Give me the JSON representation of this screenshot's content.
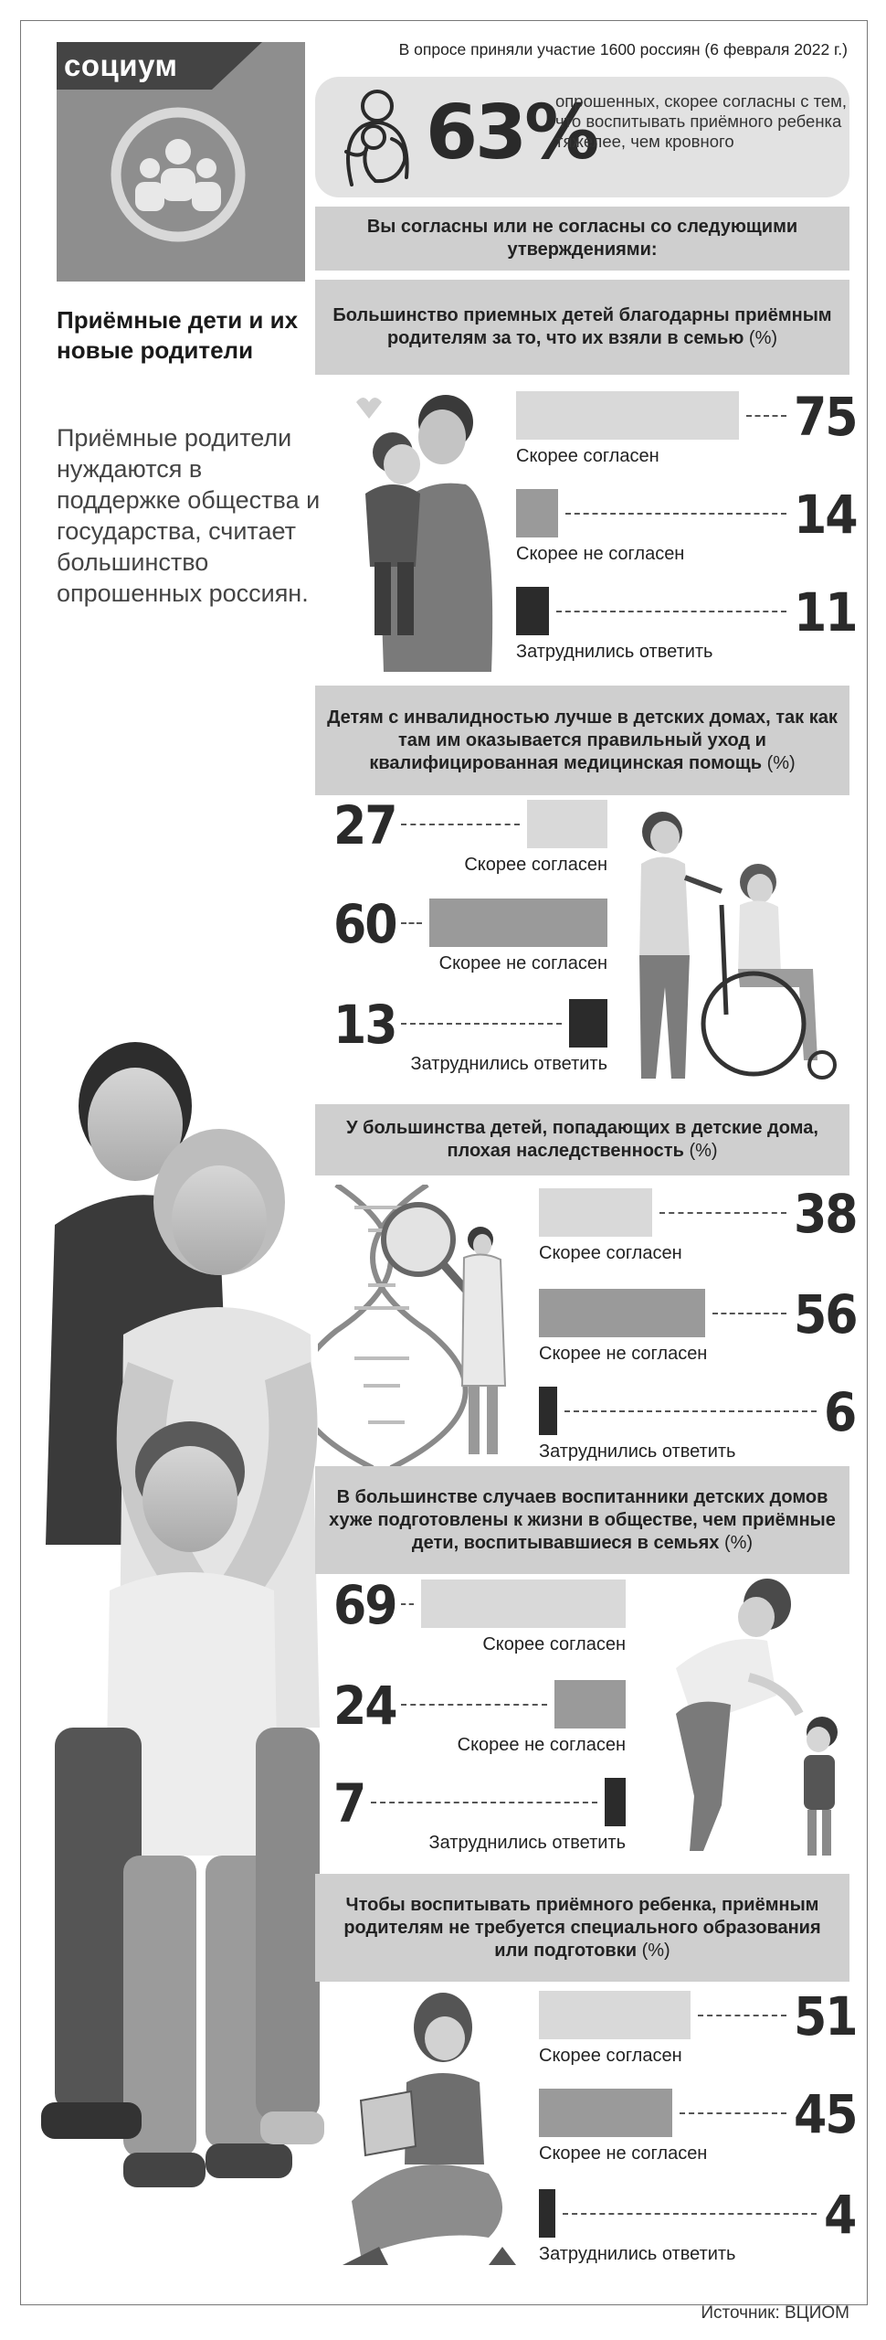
{
  "rubric": "социум",
  "sidebar": {
    "title": "Приёмные дети и их новые родители",
    "lead": "Приёмные родители нуждаются в поддержке общества и государства, считает большинство опрошенных россиян."
  },
  "survey_note": "В опросе приняли участие 1600 россиян (6 февраля 2022 г.)",
  "highlight": {
    "value": "63%",
    "text": "опрошенных, скорее согласны с тем, что воспитывать приёмного ребенка тяжелее, чем кровного"
  },
  "intro_question": "Вы согласны или не согласны со следующими утверждениями:",
  "source": "Источник: ВЦИОМ",
  "colors": {
    "agree": "#d9d9d9",
    "disagree": "#9a9a9a",
    "hard": "#2b2b2b",
    "header": "#cfcfcf"
  },
  "icons": [
    "people-group-icon",
    "parent-child-hug-icon",
    "father-hugging-child-illustration",
    "wheelchair-illustration",
    "dna-scientist-illustration",
    "mother-scolding-child-illustration",
    "woman-reading-illustration",
    "family-photo"
  ],
  "chart_data": [
    {
      "type": "bar",
      "title": "Большинство приемных детей благодарны приёмным родителям за то, что их взяли в семью",
      "unit": "(%)",
      "categories": [
        "Скорее согласен",
        "Скорее не согласен",
        "Затруднились ответить"
      ],
      "values": [
        75,
        14,
        11
      ],
      "value_labels": [
        "75",
        "14",
        "11"
      ]
    },
    {
      "type": "bar",
      "title": "Детям с инвалидностью лучше в детских домах, так как там им оказывается правильный уход и квалифицированная медицинская помощь",
      "unit": "(%)",
      "categories": [
        "Скорее согласен",
        "Скорее не согласен",
        "Затруднились ответить"
      ],
      "values": [
        27,
        60,
        13
      ],
      "value_labels": [
        "27",
        "60",
        "13"
      ]
    },
    {
      "type": "bar",
      "title": "У большинства детей, попадающих в детские дома, плохая наследственность",
      "unit": "(%)",
      "categories": [
        "Скорее согласен",
        "Скорее не согласен",
        "Затруднились ответить"
      ],
      "values": [
        38,
        56,
        6
      ],
      "value_labels": [
        "38",
        "56",
        "6"
      ]
    },
    {
      "type": "bar",
      "title": "В большинстве случаев воспитанники детских домов хуже подготовлены к жизни в обществе, чем приёмные дети, воспитывавшиеся в семьях",
      "unit": "(%)",
      "categories": [
        "Скорее согласен",
        "Скорее не согласен",
        "Затруднились ответить"
      ],
      "values": [
        69,
        24,
        7
      ],
      "value_labels": [
        "69",
        "24",
        "7"
      ]
    },
    {
      "type": "bar",
      "title": "Чтобы воспитывать приёмного ребенка, приёмным родителям не требуется специального образования или подготовки",
      "unit": "(%)",
      "categories": [
        "Скорее согласен",
        "Скорее не согласен",
        "Затруднились ответить"
      ],
      "values": [
        51,
        45,
        4
      ],
      "value_labels": [
        "51",
        "45",
        "4"
      ]
    }
  ]
}
